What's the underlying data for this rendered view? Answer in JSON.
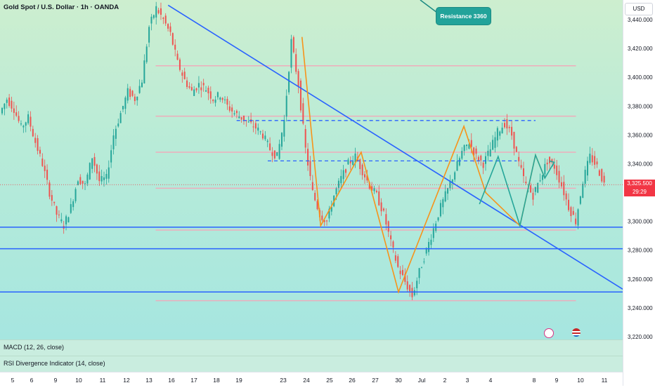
{
  "header": {
    "title": "Gold Spot / U.S. Dollar · 1h · OANDA"
  },
  "currency_button": "USD",
  "price_tag": {
    "price": "3,325.500",
    "countdown": "29:29"
  },
  "annotation": {
    "label": "Resistance 3360"
  },
  "indicators": {
    "macd": "MACD (12, 26, close)",
    "rsi": "RSI Divergence Indicator (14, close)"
  },
  "colors": {
    "trendline": "#2962ff",
    "zigzag": "#f7931a",
    "dashed": "#2962ff",
    "fib": "#f4a7b9",
    "up_candle": "#26a69a",
    "down_candle": "#ef5350",
    "arrow": "#26a69a"
  },
  "chart_data": {
    "type": "candlestick",
    "symbol": "XAUUSD",
    "timeframe": "1h",
    "ylim": [
      3218,
      3451
    ],
    "y_ticks": [
      3440,
      3420,
      3400,
      3380,
      3360,
      3340,
      3320,
      3300,
      3280,
      3260,
      3240,
      3220
    ],
    "y_tick_labels": [
      "3,440.000",
      "3,420.000",
      "3,400.000",
      "3,380.000",
      "3,360.000",
      "3,340.000",
      "3,320.000",
      "3,300.000",
      "3,280.000",
      "3,260.000",
      "3,240.000",
      "3,220.000"
    ],
    "x_tick_labels": [
      "5",
      "6",
      "9",
      "10",
      "11",
      "12",
      "13",
      "16",
      "17",
      "18",
      "19",
      "23",
      "24",
      "25",
      "26",
      "27",
      "30",
      "Jul",
      "2",
      "3",
      "4",
      "8",
      "9",
      "10",
      "11"
    ],
    "last_price": 3325.5,
    "price_path": [
      3375,
      3385,
      3378,
      3365,
      3372,
      3355,
      3340,
      3320,
      3305,
      3297,
      3310,
      3330,
      3325,
      3345,
      3328,
      3330,
      3360,
      3375,
      3390,
      3385,
      3398,
      3435,
      3448,
      3440,
      3430,
      3410,
      3398,
      3390,
      3395,
      3392,
      3385,
      3388,
      3380,
      3375,
      3372,
      3368,
      3365,
      3360,
      3350,
      3345,
      3370,
      3425,
      3395,
      3350,
      3320,
      3305,
      3300,
      3318,
      3330,
      3340,
      3345,
      3335,
      3325,
      3318,
      3305,
      3285,
      3268,
      3258,
      3248,
      3265,
      3280,
      3295,
      3310,
      3322,
      3335,
      3348,
      3355,
      3345,
      3340,
      3350,
      3362,
      3368,
      3360,
      3340,
      3325,
      3318,
      3330,
      3342,
      3338,
      3325,
      3310,
      3300,
      3328,
      3345,
      3338,
      3326
    ],
    "horizontal_levels": [
      3296,
      3281,
      3251
    ],
    "dashed_levels": [
      {
        "value": 3370,
        "from": 0.38,
        "to": 0.86
      },
      {
        "value": 3342,
        "from": 0.43,
        "to": 0.83
      }
    ],
    "fib_levels": [
      3408,
      3373,
      3348,
      3323,
      3294,
      3245
    ],
    "trendline": {
      "from": [
        0.27,
        3450
      ],
      "to": [
        1.0,
        3253
      ]
    },
    "zigzag": [
      [
        0.485,
        3428
      ],
      [
        0.515,
        3297
      ],
      [
        0.58,
        3348
      ],
      [
        0.64,
        3251
      ],
      [
        0.745,
        3366
      ],
      [
        0.78,
        3320
      ],
      [
        0.835,
        3297
      ],
      [
        0.86,
        3346
      ],
      [
        0.875,
        3330
      ]
    ],
    "zigzag_cyan": [
      [
        0.77,
        3312
      ],
      [
        0.8,
        3345
      ],
      [
        0.835,
        3297
      ],
      [
        0.86,
        3346
      ],
      [
        0.875,
        3330
      ],
      [
        0.89,
        3341
      ]
    ]
  }
}
